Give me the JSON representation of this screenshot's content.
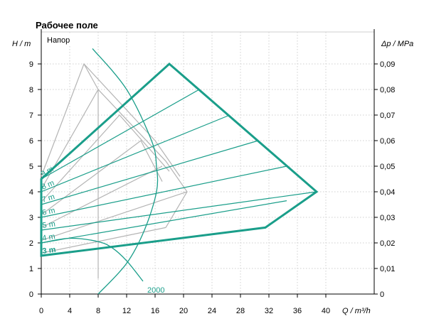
{
  "chart_data": {
    "type": "line",
    "title": "Рабочее поле",
    "legend_label": "Напор",
    "xlabel": "Q / m³/h",
    "ylabel": "H / m",
    "y2label": "Δp / MPa",
    "xlim": [
      0,
      46
    ],
    "ylim": [
      0,
      9.6
    ],
    "x_ticks": [
      "0",
      "4",
      "8",
      "12",
      "16",
      "20",
      "24",
      "28",
      "32",
      "36",
      "40"
    ],
    "y_ticks": [
      "0",
      "1",
      "2",
      "3",
      "4",
      "5",
      "6",
      "7",
      "8",
      "9"
    ],
    "y2_ticks": [
      "0",
      "0,01",
      "0,02",
      "0,03",
      "0,04",
      "0,05",
      "0,06",
      "0,07",
      "0,08",
      "0,09"
    ],
    "colors": {
      "teal": "#1a9e8a",
      "gray": "#b4b4b4"
    },
    "envelope": [
      [
        0,
        4.5
      ],
      [
        18,
        9
      ],
      [
        38.7,
        4
      ],
      [
        31.5,
        2.6
      ],
      [
        0,
        1.5
      ]
    ],
    "head_lines": [
      {
        "label": "3 m",
        "points": [
          [
            0,
            1.5
          ],
          [
            31.5,
            2.6
          ]
        ]
      },
      {
        "label": "4 m",
        "points": [
          [
            0,
            2.0
          ],
          [
            34.5,
            3.65
          ]
        ]
      },
      {
        "label": "5 m",
        "points": [
          [
            0,
            2.5
          ],
          [
            38.7,
            4.0
          ]
        ]
      },
      {
        "label": "6 m",
        "points": [
          [
            0,
            3.0
          ],
          [
            34.5,
            5.0
          ]
        ]
      },
      {
        "label": "7 m",
        "points": [
          [
            0,
            3.5
          ],
          [
            30.5,
            6.0
          ]
        ]
      },
      {
        "label": "8 m",
        "points": [
          [
            0,
            4.0
          ],
          [
            26.5,
            7.0
          ]
        ]
      },
      {
        "label": "9 m",
        "points": [
          [
            0,
            4.5
          ],
          [
            22.2,
            8.0
          ]
        ]
      }
    ],
    "gray_curves": [
      [
        [
          0,
          4.6
        ],
        [
          6,
          9.0
        ],
        [
          16,
          6.0
        ],
        [
          19.5,
          4.6
        ]
      ],
      [
        [
          0,
          4.1
        ],
        [
          8,
          8.0
        ],
        [
          17.5,
          5.2
        ],
        [
          20.5,
          4.0
        ],
        [
          17.5,
          2.6
        ]
      ],
      [
        [
          0,
          3.6
        ],
        [
          11,
          7.0
        ],
        [
          18,
          4.8
        ]
      ],
      [
        [
          0,
          3.1
        ],
        [
          14,
          6.0
        ],
        [
          17,
          4.4
        ]
      ],
      [
        [
          0,
          2.6
        ],
        [
          17,
          5.0
        ]
      ],
      [
        [
          0,
          2.1
        ],
        [
          20.5,
          4.0
        ]
      ],
      [
        [
          0,
          1.6
        ],
        [
          17.5,
          2.6
        ]
      ]
    ],
    "gray_vertical": [
      [
        6,
        9.0
      ],
      [
        8,
        8.0
      ],
      [
        8,
        0.6
      ]
    ],
    "system_curves": [
      {
        "label": "",
        "points": [
          [
            7.2,
            9.6
          ],
          [
            12,
            8.0
          ],
          [
            15.5,
            6.0
          ],
          [
            16.2,
            5.0
          ],
          [
            16.2,
            4.0
          ],
          [
            14.5,
            2.5
          ],
          [
            12,
            1.2
          ],
          [
            8,
            0
          ]
        ]
      },
      {
        "label": "2000",
        "points": [
          [
            0,
            2.0
          ],
          [
            4,
            2.18
          ],
          [
            8,
            2.05
          ],
          [
            10,
            1.8
          ],
          [
            12,
            1.3
          ],
          [
            14.3,
            0.5
          ]
        ]
      }
    ]
  }
}
